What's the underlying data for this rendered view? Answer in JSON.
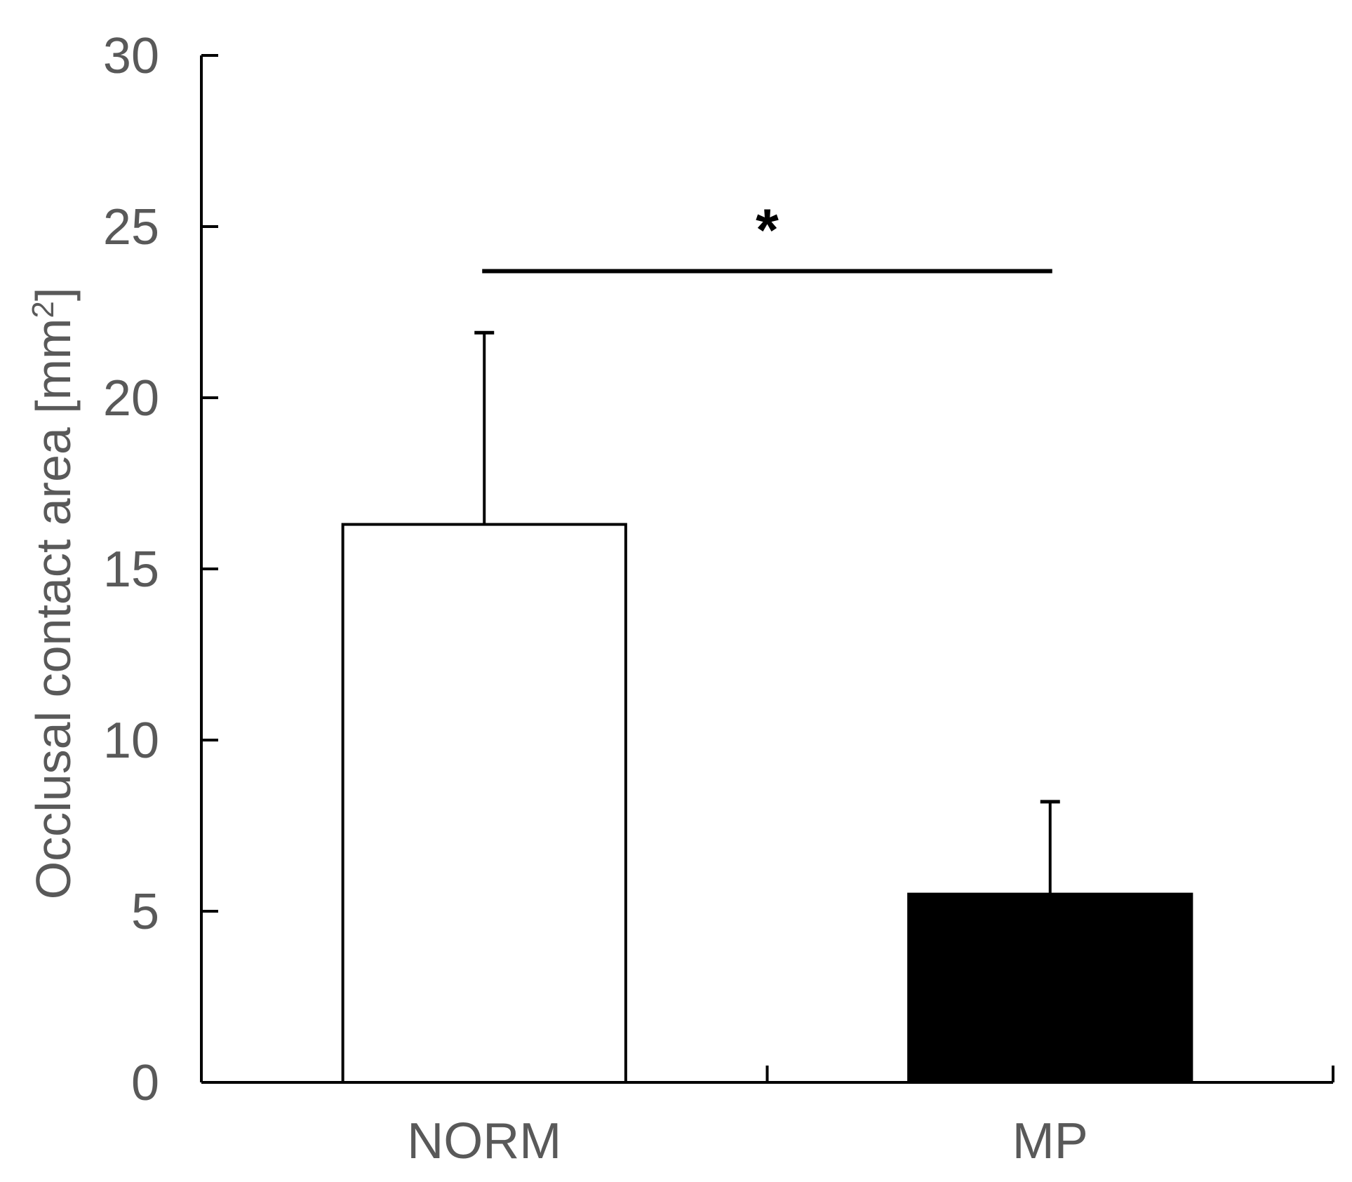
{
  "chart_data": {
    "type": "bar",
    "categories": [
      "NORM",
      "MP"
    ],
    "values": [
      16.3,
      5.5
    ],
    "error_upper": [
      21.9,
      8.2
    ],
    "bar_colors": [
      "#ffffff",
      "#000000"
    ],
    "ylabel_main": "Occlusal contact area [mm",
    "ylabel_sup": "2",
    "ylabel_end": "]",
    "xlabel": "",
    "ylim": [
      0,
      30
    ],
    "yticks": [
      0,
      5,
      10,
      15,
      20,
      25,
      30
    ],
    "grid": false,
    "significance": {
      "label": "*",
      "between": [
        "NORM",
        "MP"
      ],
      "level": 23.7
    }
  }
}
